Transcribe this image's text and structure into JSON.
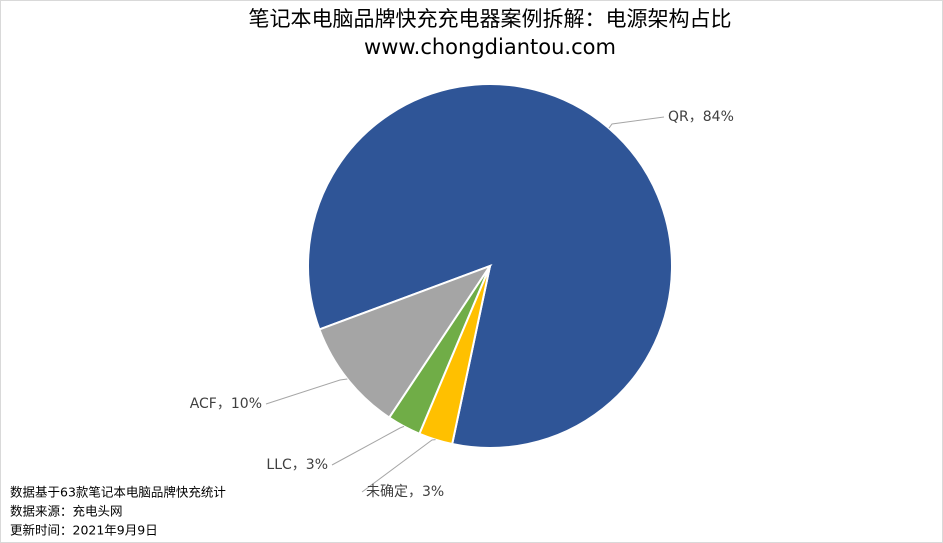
{
  "chart_data": {
    "type": "pie",
    "title": "笔记本电脑品牌快充充电器案例拆解：电源架构占比",
    "subtitle": "www.chongdiantou.com",
    "categories": [
      "QR",
      "ACF",
      "LLC",
      "未确定"
    ],
    "values": [
      84,
      10,
      3,
      3
    ],
    "value_labels": [
      "84%",
      "10%",
      "3%",
      "3%"
    ],
    "label_separator": "，",
    "colors": [
      "#2f5597",
      "#a5a5a5",
      "#70ad47",
      "#ffc000"
    ],
    "notes": [
      "数据基于63款笔记本电脑品牌快充统计",
      "数据来源：充电头网",
      "更新时间：2021年9月9日"
    ]
  }
}
